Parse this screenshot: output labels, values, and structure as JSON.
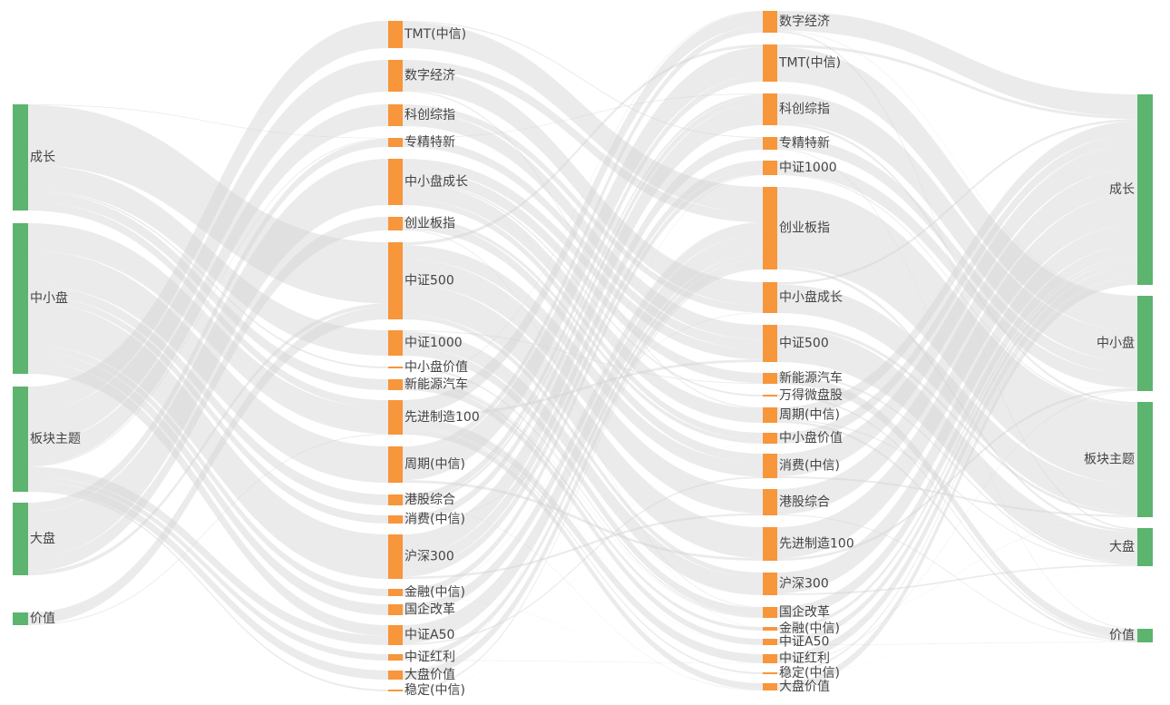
{
  "chart_data": {
    "type": "sankey",
    "colors": {
      "category_node": "#5cb46f",
      "index_node": "#f7963a",
      "link": "#d3d3d3"
    },
    "columns": [
      {
        "key": "c0",
        "nodes": [
          {
            "id": "c0_0",
            "label": "成长",
            "value": 62
          },
          {
            "id": "c0_1",
            "label": "中小盘",
            "value": 88
          },
          {
            "id": "c0_2",
            "label": "板块主题",
            "value": 61
          },
          {
            "id": "c0_3",
            "label": "大盘",
            "value": 42
          },
          {
            "id": "c0_4",
            "label": "价值",
            "value": 7
          }
        ]
      },
      {
        "key": "c1",
        "nodes": [
          {
            "id": "c1_0",
            "label": "TMT(中信)",
            "value": 15
          },
          {
            "id": "c1_1",
            "label": "数字经济",
            "value": 19
          },
          {
            "id": "c1_2",
            "label": "科创综指",
            "value": 13
          },
          {
            "id": "c1_3",
            "label": "专精特新",
            "value": 6
          },
          {
            "id": "c1_4",
            "label": "中小盘成长",
            "value": 27
          },
          {
            "id": "c1_5",
            "label": "创业板指",
            "value": 8
          },
          {
            "id": "c1_6",
            "label": "中证500",
            "value": 45
          },
          {
            "id": "c1_7",
            "label": "中证1000",
            "value": 15
          },
          {
            "id": "c1_8",
            "label": "中小盘价值",
            "value": 1
          },
          {
            "id": "c1_9",
            "label": "新能源汽车",
            "value": 6
          },
          {
            "id": "c1_10",
            "label": "先进制造100",
            "value": 20
          },
          {
            "id": "c1_11",
            "label": "周期(中信)",
            "value": 21
          },
          {
            "id": "c1_12",
            "label": "港股综合",
            "value": 6
          },
          {
            "id": "c1_13",
            "label": "消费(中信)",
            "value": 4
          },
          {
            "id": "c1_14",
            "label": "沪深300",
            "value": 26
          },
          {
            "id": "c1_15",
            "label": "金融(中信)",
            "value": 4
          },
          {
            "id": "c1_16",
            "label": "国企改革",
            "value": 6
          },
          {
            "id": "c1_17",
            "label": "中证A50",
            "value": 12
          },
          {
            "id": "c1_18",
            "label": "中证红利",
            "value": 3
          },
          {
            "id": "c1_19",
            "label": "大盘价值",
            "value": 5
          },
          {
            "id": "c1_20",
            "label": "稳定(中信)",
            "value": 1
          }
        ]
      },
      {
        "key": "c2",
        "nodes": [
          {
            "id": "c2_0",
            "label": "数字经济",
            "value": 14
          },
          {
            "id": "c2_1",
            "label": "TMT(中信)",
            "value": 22
          },
          {
            "id": "c2_2",
            "label": "科创综指",
            "value": 20
          },
          {
            "id": "c2_3",
            "label": "专精特新",
            "value": 8
          },
          {
            "id": "c2_4",
            "label": "中证1000",
            "value": 9
          },
          {
            "id": "c2_5",
            "label": "创业板指",
            "value": 50
          },
          {
            "id": "c2_6",
            "label": "中小盘成长",
            "value": 18
          },
          {
            "id": "c2_7",
            "label": "中证500",
            "value": 22
          },
          {
            "id": "c2_8",
            "label": "新能源汽车",
            "value": 7
          },
          {
            "id": "c2_9",
            "label": "万得微盘股",
            "value": 1
          },
          {
            "id": "c2_10",
            "label": "周期(中信)",
            "value": 10
          },
          {
            "id": "c2_11",
            "label": "中小盘价值",
            "value": 6
          },
          {
            "id": "c2_12",
            "label": "消费(中信)",
            "value": 15
          },
          {
            "id": "c2_13",
            "label": "港股综合",
            "value": 16
          },
          {
            "id": "c2_14",
            "label": "先进制造100",
            "value": 19
          },
          {
            "id": "c2_15",
            "label": "沪深300",
            "value": 13
          },
          {
            "id": "c2_16",
            "label": "国企改革",
            "value": 7
          },
          {
            "id": "c2_17",
            "label": "金融(中信)",
            "value": 2
          },
          {
            "id": "c2_18",
            "label": "中证A50",
            "value": 4
          },
          {
            "id": "c2_19",
            "label": "中证红利",
            "value": 6
          },
          {
            "id": "c2_20",
            "label": "稳定(中信)",
            "value": 1
          },
          {
            "id": "c2_21",
            "label": "大盘价值",
            "value": 4
          }
        ]
      },
      {
        "key": "c3",
        "nodes": [
          {
            "id": "c3_0",
            "label": "成长",
            "value": 110
          },
          {
            "id": "c3_1",
            "label": "中小盘",
            "value": 56
          },
          {
            "id": "c3_2",
            "label": "板块主题",
            "value": 66
          },
          {
            "id": "c3_3",
            "label": "大盘",
            "value": 22
          },
          {
            "id": "c3_4",
            "label": "价值",
            "value": 8
          }
        ]
      }
    ]
  }
}
